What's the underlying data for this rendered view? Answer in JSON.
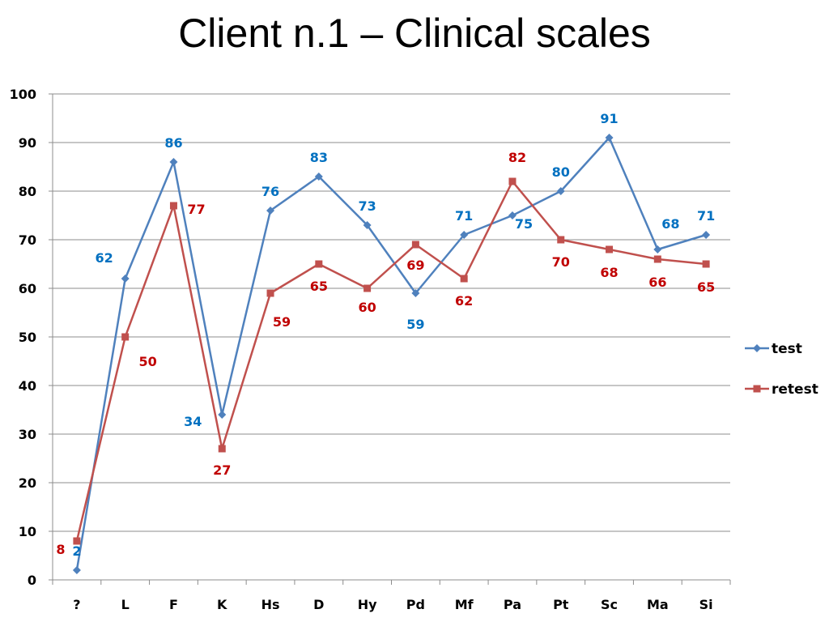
{
  "chart_data": {
    "type": "line",
    "title": "Client n.1 – Clinical scales",
    "xlabel": "",
    "ylabel": "",
    "categories": [
      "?",
      "L",
      "F",
      "K",
      "Hs",
      "D",
      "Hy",
      "Pd",
      "Mf",
      "Pa",
      "Pt",
      "Sc",
      "Ma",
      "Si"
    ],
    "ylim": [
      0,
      100
    ],
    "yticks": [
      0,
      10,
      20,
      30,
      40,
      50,
      60,
      70,
      80,
      90,
      100
    ],
    "grid": true,
    "legend_position": "right",
    "series": [
      {
        "name": "test",
        "color": "#4f81bd",
        "label_color": "#0070c0",
        "marker": "diamond",
        "values": [
          2,
          62,
          86,
          34,
          76,
          83,
          73,
          59,
          71,
          75,
          80,
          91,
          68,
          71
        ]
      },
      {
        "name": "retest",
        "color": "#c0504d",
        "label_color": "#c00000",
        "marker": "square",
        "values": [
          8,
          50,
          77,
          27,
          59,
          65,
          60,
          69,
          62,
          82,
          70,
          68,
          66,
          65
        ]
      }
    ]
  }
}
